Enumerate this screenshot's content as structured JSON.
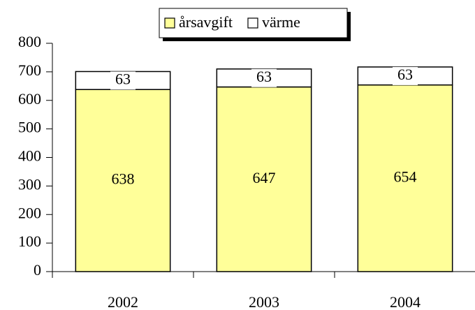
{
  "chart_data": {
    "type": "stacked_bar",
    "categories": [
      "2002",
      "2003",
      "2004"
    ],
    "series": [
      {
        "name": "årsavgift",
        "color": "#ffff99",
        "values": [
          638,
          647,
          654
        ]
      },
      {
        "name": "värme",
        "color": "#ffffff",
        "values": [
          63,
          63,
          63
        ]
      }
    ],
    "ylim": [
      0,
      800
    ],
    "yticks": [
      0,
      100,
      200,
      300,
      400,
      500,
      600,
      700,
      800
    ],
    "legend": "top"
  }
}
